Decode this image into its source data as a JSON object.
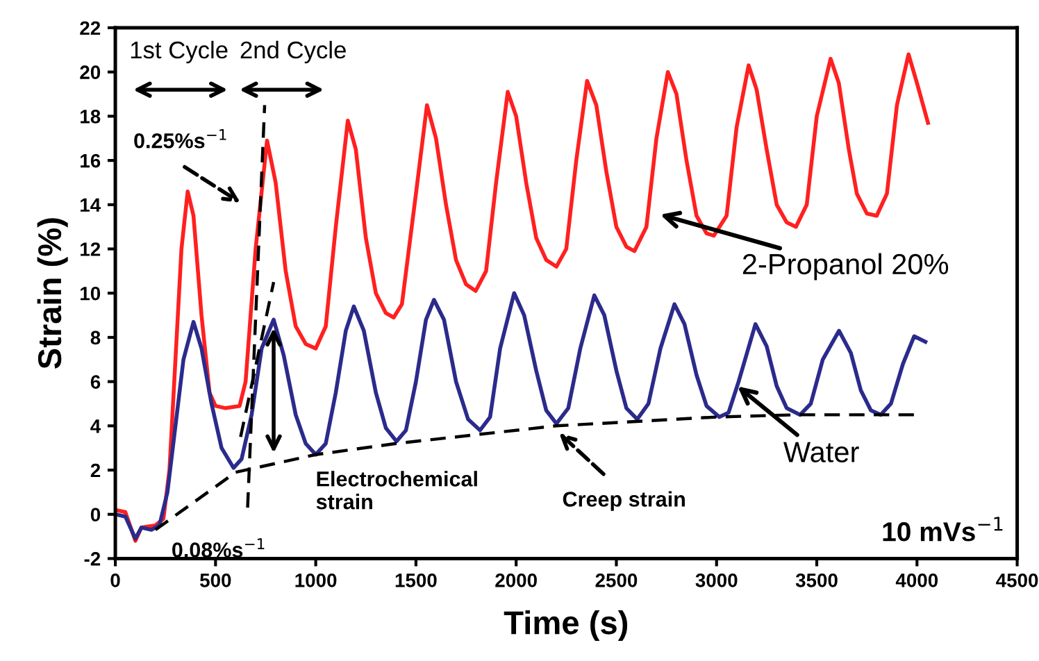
{
  "chart_data": {
    "type": "line",
    "xlabel": "Time (s)",
    "ylabel": "Strain (%)",
    "xlim": [
      0,
      4500
    ],
    "xticks": [
      0,
      500,
      1000,
      1500,
      2000,
      2500,
      3000,
      3500,
      4000,
      4500
    ],
    "ylim": [
      -2,
      22
    ],
    "yticks": [
      -2,
      0,
      2,
      4,
      6,
      8,
      10,
      12,
      14,
      16,
      18,
      20,
      22
    ],
    "grid": false,
    "legend": false,
    "marker": "none",
    "annotations": [
      "1st Cycle",
      "2nd Cycle",
      "0.25%s$^{−1}$",
      "0.08%s$^{−1}$",
      "Electrochemical\nstrain",
      "Creep strain",
      "10 mVs$^{−1}$"
    ],
    "series": [
      {
        "name": "2-Propanol 20%",
        "color": "#ff2020",
        "line_style": "solid",
        "x": [
          0,
          50,
          100,
          130,
          200,
          240,
          270,
          300,
          330,
          361,
          390,
          430,
          470,
          500,
          550,
          620,
          650,
          700,
          757,
          800,
          850,
          900,
          950,
          1000,
          1050,
          1100,
          1160,
          1200,
          1250,
          1300,
          1350,
          1389,
          1430,
          1500,
          1555,
          1600,
          1650,
          1700,
          1750,
          1798,
          1850,
          1900,
          1958,
          2000,
          2050,
          2100,
          2150,
          2201,
          2250,
          2300,
          2354,
          2400,
          2450,
          2500,
          2550,
          2590,
          2650,
          2700,
          2757,
          2800,
          2850,
          2900,
          2950,
          2986,
          3050,
          3100,
          3160,
          3200,
          3250,
          3300,
          3350,
          3396,
          3450,
          3500,
          3569,
          3610,
          3660,
          3700,
          3750,
          3799,
          3850,
          3900,
          3958,
          4000,
          4055
        ],
        "values": [
          0.2,
          0.1,
          -1.2,
          -0.6,
          -0.5,
          -0.2,
          2,
          7,
          12,
          14.6,
          13.5,
          9,
          5.5,
          4.9,
          4.8,
          4.9,
          6,
          12,
          16.9,
          15,
          11,
          8.5,
          7.7,
          7.5,
          8.5,
          13,
          17.8,
          16.5,
          12.5,
          10,
          9.1,
          8.9,
          9.5,
          14.5,
          18.5,
          17,
          14,
          11.5,
          10.4,
          10.1,
          11,
          15,
          19.1,
          18,
          15,
          12.5,
          11.5,
          11.2,
          12,
          16,
          19.6,
          18.5,
          15.5,
          13,
          12.1,
          11.9,
          13,
          17,
          20.0,
          19,
          16,
          13.5,
          12.7,
          12.6,
          13.5,
          17.5,
          20.3,
          19.2,
          16.5,
          14,
          13.2,
          13.0,
          14,
          18,
          20.6,
          19.5,
          16.5,
          14.5,
          13.6,
          13.5,
          14.5,
          18.5,
          20.8,
          19.5,
          17.7
        ]
      },
      {
        "name": "Water",
        "color": "#2b2b8c",
        "line_style": "solid",
        "x": [
          0,
          50,
          100,
          130,
          180,
          220,
          260,
          300,
          340,
          390,
          430,
          480,
          530,
          590,
          630,
          680,
          730,
          790,
          840,
          900,
          950,
          1000,
          1050,
          1100,
          1150,
          1190,
          1240,
          1300,
          1350,
          1403,
          1450,
          1500,
          1550,
          1590,
          1640,
          1700,
          1760,
          1820,
          1870,
          1920,
          1990,
          2040,
          2100,
          2150,
          2201,
          2260,
          2320,
          2390,
          2440,
          2500,
          2550,
          2604,
          2660,
          2720,
          2790,
          2840,
          2900,
          2950,
          3014,
          3060,
          3110,
          3194,
          3250,
          3300,
          3350,
          3417,
          3470,
          3530,
          3611,
          3670,
          3720,
          3770,
          3819,
          3870,
          3930,
          3986,
          4042
        ],
        "values": [
          0,
          -0.1,
          -1.1,
          -0.6,
          -0.7,
          -0.5,
          1,
          4,
          7,
          8.7,
          7.5,
          5,
          3,
          2.1,
          2.5,
          4.5,
          7.5,
          8.8,
          7.2,
          4.5,
          3.2,
          2.7,
          3.2,
          5.5,
          8.3,
          9.4,
          8.3,
          5.5,
          3.9,
          3.3,
          3.8,
          6,
          8.8,
          9.7,
          8.8,
          6,
          4.3,
          3.8,
          4.4,
          7.5,
          10.0,
          9,
          6.5,
          4.7,
          4.1,
          4.8,
          7.5,
          9.9,
          9,
          6.5,
          4.8,
          4.3,
          5,
          7.5,
          9.5,
          8.6,
          6.3,
          4.9,
          4.4,
          4.6,
          6,
          8.6,
          7.6,
          5.8,
          4.8,
          4.5,
          5,
          7,
          8.3,
          7.3,
          5.6,
          4.7,
          4.5,
          5,
          6.8,
          8.05,
          7.8
        ]
      },
      {
        "color": "#000000",
        "line_style": "dashed",
        "x": [
          200,
          600,
          1000,
          1400,
          1800,
          2200,
          2600,
          3000,
          3400,
          3800,
          4000
        ],
        "values": [
          -0.7,
          1.9,
          2.7,
          3.2,
          3.6,
          4.0,
          4.2,
          4.4,
          4.5,
          4.5,
          4.5
        ]
      },
      {
        "color": "#000000",
        "line_style": "dashed",
        "x": [
          660,
          745
        ],
        "values": [
          0.3,
          18.5
        ]
      },
      {
        "color": "#000000",
        "line_style": "dashed",
        "x": [
          625,
          790
        ],
        "values": [
          3.5,
          10.5
        ]
      }
    ]
  }
}
